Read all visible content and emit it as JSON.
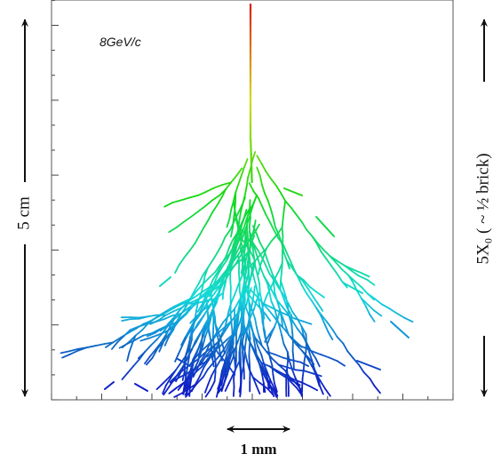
{
  "label": "8GeV/c",
  "left_scale": "5 cm",
  "right_scale": "5X₀ ( ~ ½ brick)",
  "bottom_scale": "1 mm"
}
